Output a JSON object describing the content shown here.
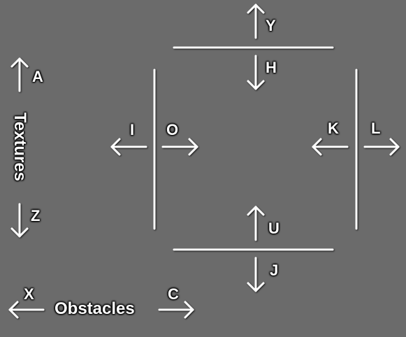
{
  "keys": {
    "y": "Y",
    "h": "H",
    "a": "A",
    "z": "Z",
    "i": "I",
    "o": "O",
    "k": "K",
    "l": "L",
    "u": "U",
    "j": "J",
    "x": "X",
    "c": "C"
  },
  "labels": {
    "textures": "Textures",
    "obstacles": "Obstacles"
  },
  "colors": {
    "background": "#6b6b6b",
    "foreground": "#ffffff",
    "shadow": "#000000"
  }
}
